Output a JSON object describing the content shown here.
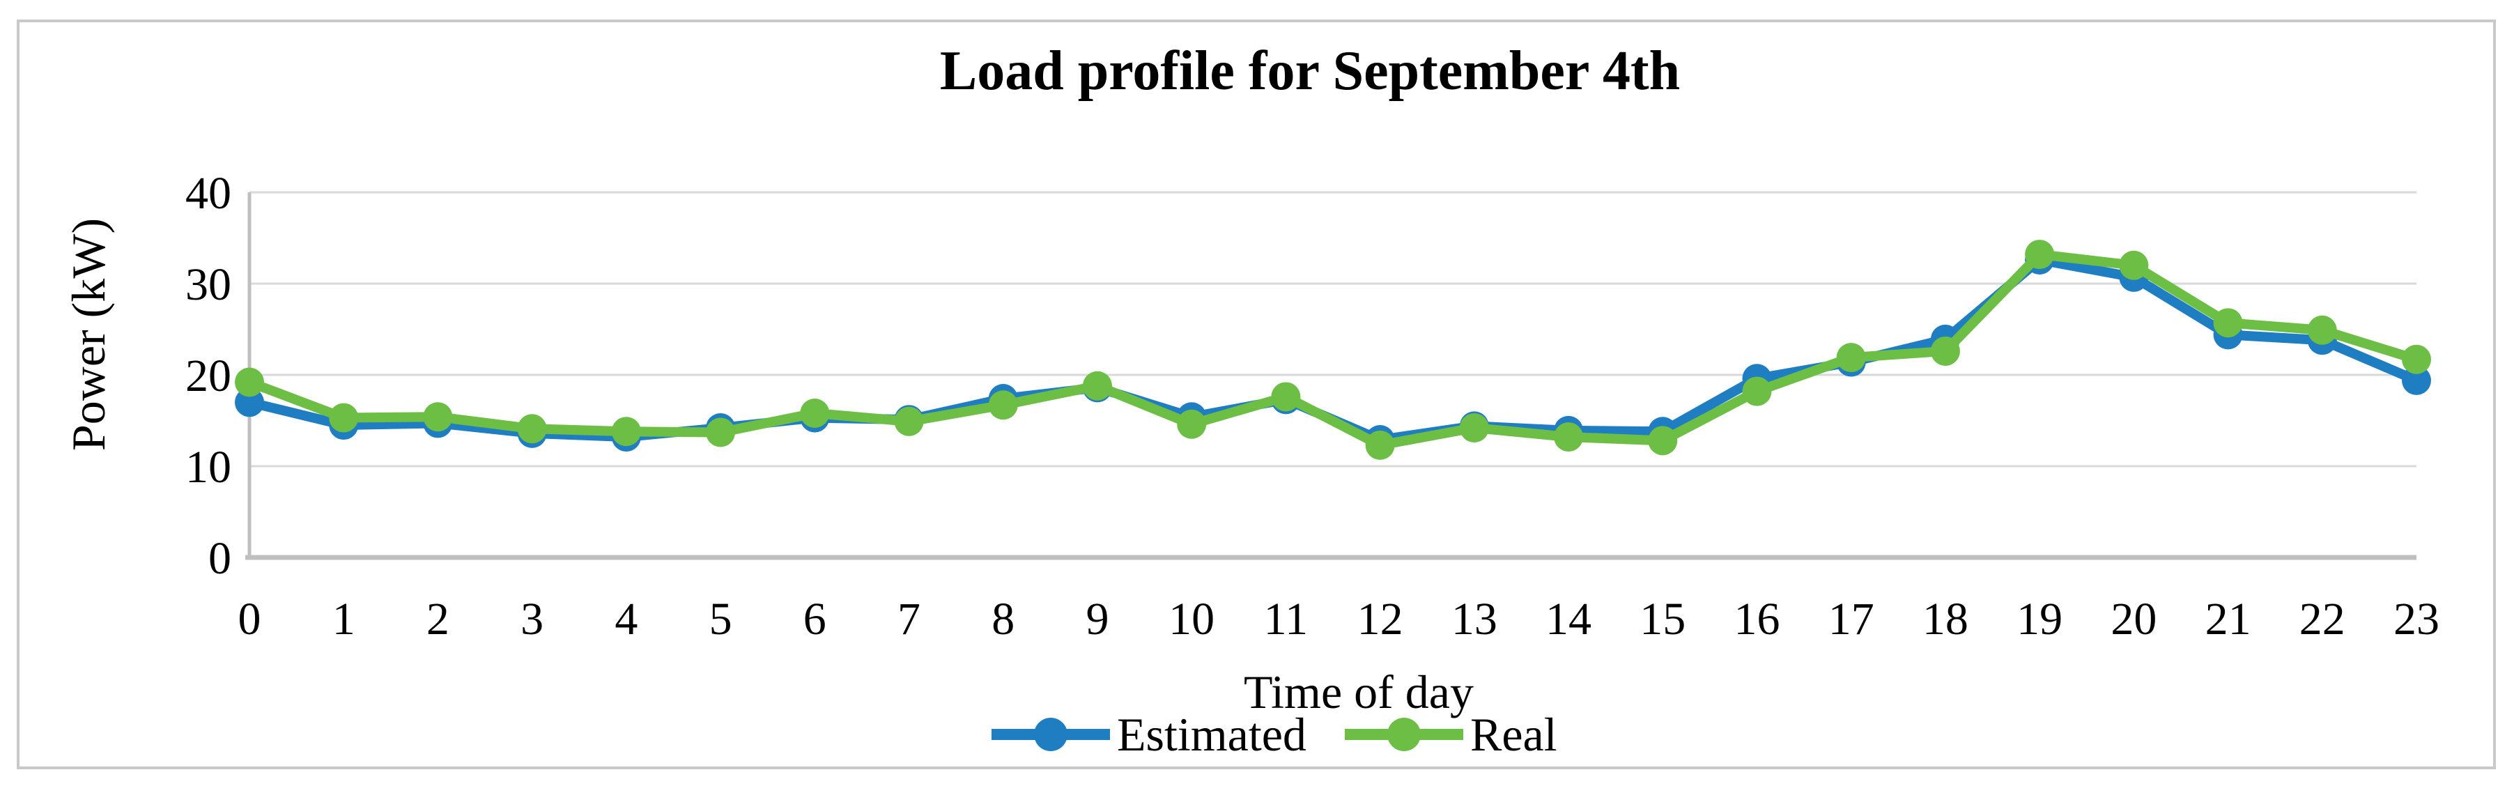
{
  "figure": {
    "background": "#ffffff",
    "border_color": "#c9c9c9"
  },
  "chart_data": {
    "type": "line",
    "title": "Load profile for September 4th",
    "xlabel": "Time of day",
    "ylabel": "Power (kW)",
    "x": [
      0,
      1,
      2,
      3,
      4,
      5,
      6,
      7,
      8,
      9,
      10,
      11,
      12,
      13,
      14,
      15,
      16,
      17,
      18,
      19,
      20,
      21,
      22,
      23
    ],
    "y_ticks": [
      0,
      10,
      20,
      30,
      40
    ],
    "xlim": [
      0,
      23
    ],
    "ylim": [
      0,
      40
    ],
    "grid": "horizontal",
    "gridline_color": "#d9d9d9",
    "axis_color": "#bfbfbf",
    "legend_position": "bottom-center",
    "series": [
      {
        "name": "Estimated",
        "color": "#1f7dc2",
        "marker": "circle",
        "values": [
          17.0,
          14.5,
          14.7,
          13.6,
          13.2,
          14.2,
          15.3,
          15.1,
          17.4,
          18.6,
          15.4,
          17.3,
          12.9,
          14.4,
          13.9,
          13.8,
          19.6,
          21.4,
          23.9,
          32.6,
          30.7,
          24.4,
          23.8,
          19.4
        ]
      },
      {
        "name": "Real",
        "color": "#6cbe45",
        "marker": "circle",
        "values": [
          19.2,
          15.3,
          15.4,
          14.1,
          13.8,
          13.7,
          15.8,
          14.9,
          16.7,
          18.8,
          14.6,
          17.6,
          12.3,
          14.2,
          13.2,
          12.8,
          18.2,
          21.9,
          22.6,
          33.2,
          32.0,
          25.7,
          24.9,
          21.7
        ]
      }
    ]
  }
}
